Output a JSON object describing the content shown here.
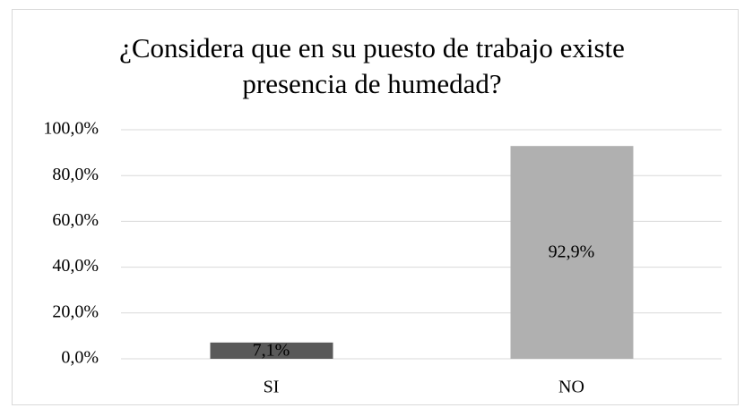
{
  "chart_data": {
    "type": "bar",
    "title": "¿Considera que en su puesto de trabajo existe presencia de humedad?",
    "categories": [
      "SI",
      "NO"
    ],
    "values": [
      7.1,
      92.9
    ],
    "value_labels": [
      "7,1%",
      "92,9%"
    ],
    "colors": [
      "#595959",
      "#b0b0b0"
    ],
    "ylim": [
      0,
      100
    ],
    "yticks": [
      {
        "value": 0,
        "label": "0,0%"
      },
      {
        "value": 20,
        "label": "20,0%"
      },
      {
        "value": 40,
        "label": "40,0%"
      },
      {
        "value": 60,
        "label": "60,0%"
      },
      {
        "value": 80,
        "label": "80,0%"
      },
      {
        "value": 100,
        "label": "100,0%"
      }
    ],
    "grid": true
  }
}
